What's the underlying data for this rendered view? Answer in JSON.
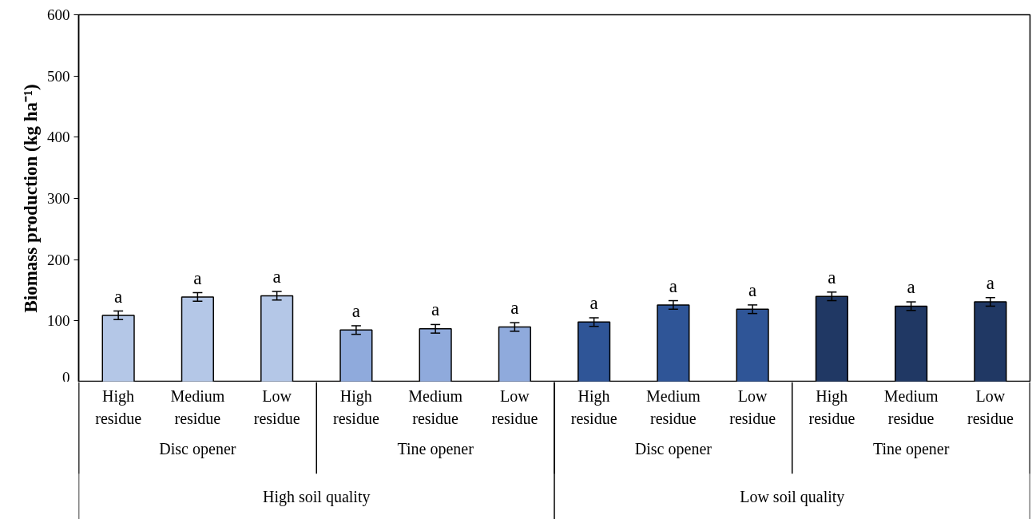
{
  "chart_data": {
    "type": "bar",
    "ylabel": "Biomass production (kg ha⁻¹)",
    "categories": [
      "High residue",
      "Medium residue",
      "Low residue",
      "High residue",
      "Medium residue",
      "Low residue",
      "High residue",
      "Medium residue",
      "Low residue",
      "High residue",
      "Medium residue",
      "Low residue"
    ],
    "values": [
      109,
      139,
      141,
      85,
      87,
      90,
      98,
      126,
      119,
      140,
      124,
      131
    ],
    "errors": [
      7,
      7,
      7,
      7,
      7,
      7,
      7,
      7,
      7,
      7,
      7,
      7
    ],
    "colors": [
      "#b4c7e7",
      "#b4c7e7",
      "#b4c7e7",
      "#8faadc",
      "#8faadc",
      "#8faadc",
      "#2f5597",
      "#2f5597",
      "#2f5597",
      "#203864",
      "#203864",
      "#203864"
    ],
    "value_labels": [
      "a",
      "a",
      "a",
      "a",
      "a",
      "a",
      "a",
      "a",
      "a",
      "a",
      "a",
      "a"
    ],
    "annotations": [
      "Disc opener",
      "Tine opener",
      "Disc opener",
      "Tine opener",
      "High soil quality",
      "Low soil quality"
    ],
    "ylim": [
      0,
      600
    ],
    "yticks": [
      0,
      100,
      200,
      300,
      400,
      500,
      600
    ],
    "grid": false
  }
}
